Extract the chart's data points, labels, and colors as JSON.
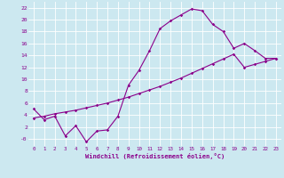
{
  "xlabel": "Windchill (Refroidissement éolien,°C)",
  "bg_color": "#cce8f0",
  "line_color": "#8b008b",
  "grid_color": "#ffffff",
  "xlim": [
    -0.5,
    23.5
  ],
  "ylim": [
    -1.2,
    23
  ],
  "xticks": [
    0,
    1,
    2,
    3,
    4,
    5,
    6,
    7,
    8,
    9,
    10,
    11,
    12,
    13,
    14,
    15,
    16,
    17,
    18,
    19,
    20,
    21,
    22,
    23
  ],
  "yticks": [
    0,
    2,
    4,
    6,
    8,
    10,
    12,
    14,
    16,
    18,
    20,
    22
  ],
  "ytick_labels": [
    "-0",
    "2",
    "4",
    "6",
    "8",
    "10",
    "12",
    "14",
    "16",
    "18",
    "20",
    "22"
  ],
  "line1_x": [
    0,
    1,
    2,
    3,
    4,
    5,
    6,
    7,
    8,
    9,
    10,
    11,
    12,
    13,
    14,
    15,
    16,
    17,
    18,
    19,
    20,
    21,
    22,
    23
  ],
  "line1_y": [
    5.0,
    3.2,
    3.8,
    0.5,
    2.2,
    -0.5,
    1.3,
    1.5,
    3.8,
    9.0,
    11.5,
    14.8,
    18.5,
    19.8,
    20.8,
    21.8,
    21.5,
    19.2,
    18.0,
    15.2,
    16.0,
    14.8,
    13.5,
    13.5
  ],
  "line2_x": [
    0,
    1,
    2,
    3,
    4,
    5,
    6,
    7,
    8,
    9,
    10,
    11,
    12,
    13,
    14,
    15,
    16,
    17,
    18,
    19,
    20,
    21,
    22,
    23
  ],
  "line2_y": [
    3.5,
    3.8,
    4.2,
    4.5,
    4.8,
    5.2,
    5.6,
    6.0,
    6.5,
    7.0,
    7.6,
    8.2,
    8.8,
    9.5,
    10.2,
    11.0,
    11.8,
    12.6,
    13.4,
    14.2,
    12.0,
    12.5,
    13.0,
    13.5
  ]
}
